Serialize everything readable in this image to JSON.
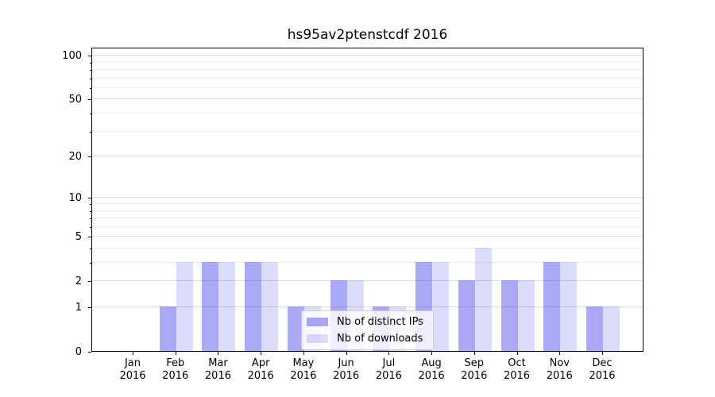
{
  "chart_data": {
    "type": "bar",
    "title": "hs95av2ptenstcdf 2016",
    "categories": [
      {
        "month": "Jan",
        "year": "2016"
      },
      {
        "month": "Feb",
        "year": "2016"
      },
      {
        "month": "Mar",
        "year": "2016"
      },
      {
        "month": "Apr",
        "year": "2016"
      },
      {
        "month": "May",
        "year": "2016"
      },
      {
        "month": "Jun",
        "year": "2016"
      },
      {
        "month": "Jul",
        "year": "2016"
      },
      {
        "month": "Aug",
        "year": "2016"
      },
      {
        "month": "Sep",
        "year": "2016"
      },
      {
        "month": "Oct",
        "year": "2016"
      },
      {
        "month": "Nov",
        "year": "2016"
      },
      {
        "month": "Dec",
        "year": "2016"
      }
    ],
    "series": [
      {
        "key": "distinct-ips",
        "name": "Nb of distinct IPs",
        "color": "#3232e6",
        "alpha": 0.42,
        "rendered_color": "#a9a9f4",
        "values": [
          0,
          1,
          3,
          3,
          1,
          2,
          1,
          3,
          2,
          2,
          3,
          1
        ]
      },
      {
        "key": "downloads",
        "name": "Nb of downloads",
        "color": "#3232e6",
        "alpha": 0.17,
        "rendered_color": "#dcdcfa",
        "values": [
          0,
          3,
          3,
          3,
          1,
          2,
          1,
          3,
          4,
          2,
          3,
          1
        ]
      }
    ],
    "y_axis": {
      "scale": "log1p",
      "ticks": [
        0,
        1,
        2,
        5,
        10,
        20,
        50,
        100
      ],
      "minor_ticks": [
        3,
        4,
        6,
        7,
        8,
        9,
        30,
        40,
        60,
        70,
        80,
        90
      ]
    },
    "ylim": [
      0,
      113.6
    ],
    "xlabel": "",
    "ylabel": "",
    "grid": true,
    "legend_position": "lower center"
  }
}
